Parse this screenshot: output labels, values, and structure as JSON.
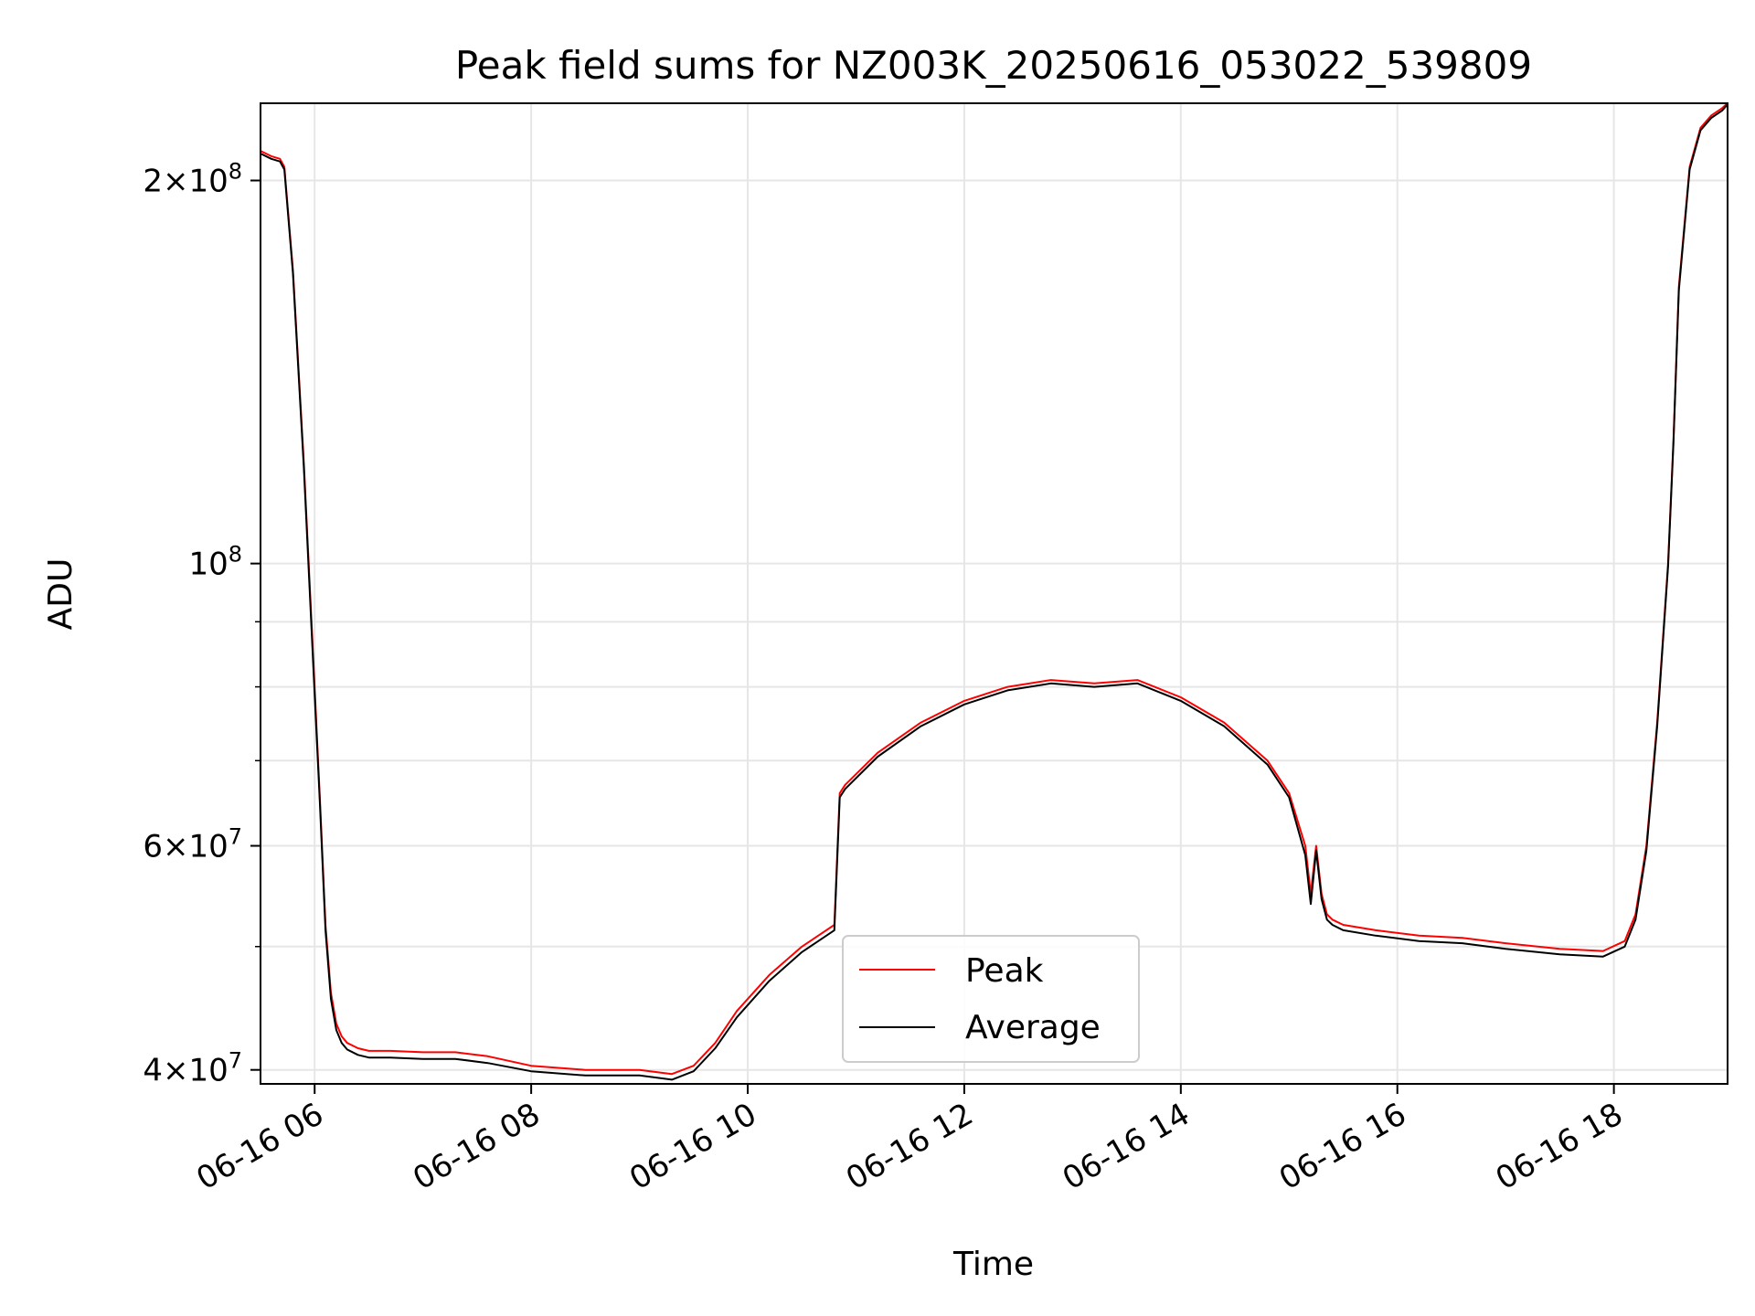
{
  "chart_data": {
    "type": "line",
    "title": "Peak field sums for NZ003K_20250616_053022_539809",
    "xlabel": "Time",
    "ylabel": "ADU",
    "xscale": "time",
    "yscale": "log",
    "xlim": [
      "2025-06-16 05:30",
      "2025-06-16 19:05"
    ],
    "ylim": [
      39000000,
      230000000
    ],
    "x_ticks": [
      "06-16 06",
      "06-16 08",
      "06-16 10",
      "06-16 12",
      "06-16 14",
      "06-16 16",
      "06-16 18"
    ],
    "x_tick_hours": [
      6,
      8,
      10,
      12,
      14,
      16,
      18
    ],
    "y_ticks": [
      {
        "value": 40000000,
        "mantissa": "4",
        "exponent": "7"
      },
      {
        "value": 60000000,
        "mantissa": "6",
        "exponent": "7"
      },
      {
        "value": 100000000,
        "mantissa": "",
        "exponent": "8"
      },
      {
        "value": 200000000,
        "mantissa": "2",
        "exponent": "8"
      }
    ],
    "y_minor_ticks": [
      50000000,
      70000000,
      80000000,
      90000000
    ],
    "grid": true,
    "legend_position": "lower-center",
    "series": [
      {
        "name": "Peak",
        "color": "#ff0000",
        "x_hours": [
          5.5,
          5.6,
          5.68,
          5.72,
          5.8,
          5.9,
          6.0,
          6.05,
          6.1,
          6.15,
          6.2,
          6.25,
          6.3,
          6.4,
          6.5,
          6.7,
          7.0,
          7.3,
          7.6,
          8.0,
          8.5,
          9.0,
          9.3,
          9.5,
          9.7,
          9.9,
          10.2,
          10.5,
          10.8,
          10.85,
          10.9,
          11.2,
          11.6,
          12.0,
          12.4,
          12.8,
          13.2,
          13.6,
          14.0,
          14.4,
          14.8,
          15.0,
          15.15,
          15.2,
          15.25,
          15.3,
          15.35,
          15.4,
          15.5,
          15.8,
          16.2,
          16.6,
          17.0,
          17.5,
          17.9,
          18.1,
          18.2,
          18.3,
          18.4,
          18.5,
          18.55,
          18.6,
          18.7,
          18.8,
          18.9,
          19.0,
          19.05
        ],
        "values": [
          211000000,
          209000000,
          208000000,
          205000000,
          170000000,
          120000000,
          80000000,
          65000000,
          52000000,
          46000000,
          43500000,
          42500000,
          42000000,
          41600000,
          41400000,
          41400000,
          41300000,
          41300000,
          41000000,
          40300000,
          40000000,
          40000000,
          39700000,
          40300000,
          42000000,
          44500000,
          47500000,
          50000000,
          52000000,
          66000000,
          67000000,
          71000000,
          75000000,
          78000000,
          80000000,
          81000000,
          80500000,
          81000000,
          78500000,
          75000000,
          70000000,
          66000000,
          60000000,
          55000000,
          60000000,
          55000000,
          53000000,
          52500000,
          52000000,
          51500000,
          51000000,
          50800000,
          50300000,
          49800000,
          49600000,
          50500000,
          53000000,
          60000000,
          75000000,
          100000000,
          125000000,
          165000000,
          205000000,
          220000000,
          225000000,
          228000000,
          230000000
        ]
      },
      {
        "name": "Average",
        "color": "#000000",
        "x_hours": [
          5.5,
          5.6,
          5.68,
          5.72,
          5.8,
          5.9,
          6.0,
          6.05,
          6.1,
          6.15,
          6.2,
          6.25,
          6.3,
          6.4,
          6.5,
          6.7,
          7.0,
          7.3,
          7.6,
          8.0,
          8.5,
          9.0,
          9.3,
          9.5,
          9.7,
          9.9,
          10.2,
          10.5,
          10.8,
          10.85,
          10.9,
          11.2,
          11.6,
          12.0,
          12.4,
          12.8,
          13.2,
          13.6,
          14.0,
          14.4,
          14.8,
          15.0,
          15.15,
          15.2,
          15.25,
          15.3,
          15.35,
          15.4,
          15.5,
          15.8,
          16.2,
          16.6,
          17.0,
          17.5,
          17.9,
          18.1,
          18.2,
          18.3,
          18.4,
          18.5,
          18.55,
          18.6,
          18.7,
          18.8,
          18.9,
          19.0,
          19.05
        ],
        "values": [
          210000000,
          208000000,
          207000000,
          204000000,
          169000000,
          119000000,
          79000000,
          64500000,
          51500000,
          45500000,
          43000000,
          42000000,
          41500000,
          41100000,
          40900000,
          40900000,
          40800000,
          40800000,
          40500000,
          39900000,
          39600000,
          39600000,
          39300000,
          39900000,
          41600000,
          44000000,
          47000000,
          49500000,
          51500000,
          65500000,
          66500000,
          70500000,
          74500000,
          77500000,
          79500000,
          80500000,
          80000000,
          80500000,
          78000000,
          74500000,
          69500000,
          65500000,
          59000000,
          54000000,
          59500000,
          54500000,
          52500000,
          52000000,
          51500000,
          51000000,
          50500000,
          50300000,
          49800000,
          49300000,
          49100000,
          50000000,
          52500000,
          59500000,
          74500000,
          99500000,
          124500000,
          164000000,
          204000000,
          219000000,
          224000000,
          227000000,
          229500000
        ]
      }
    ]
  }
}
